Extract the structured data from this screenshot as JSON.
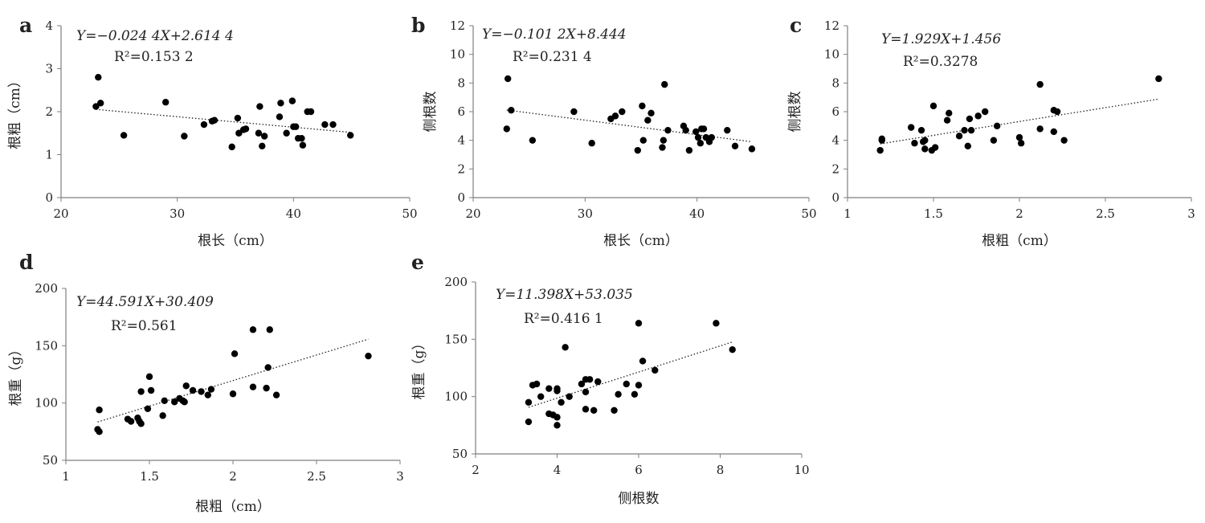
{
  "chart_data": [
    {
      "panel": "a",
      "type": "scatter",
      "equation": "Y=−0.024 4X+2.614 4",
      "r2": "R²=0.153 2",
      "xlabel": "根长（cm）",
      "ylabel": "根粗（cm）",
      "xlim": [
        20,
        50
      ],
      "ylim": [
        0,
        4
      ],
      "xticks": [
        20,
        30,
        40,
        50
      ],
      "yticks": [
        0,
        1,
        2,
        3,
        4
      ],
      "trendline": {
        "slope": -0.0244,
        "intercept": 2.6144
      },
      "points": [
        [
          23.0,
          2.12
        ],
        [
          23.2,
          2.8
        ],
        [
          23.4,
          2.2
        ],
        [
          25.4,
          1.45
        ],
        [
          29.0,
          2.22
        ],
        [
          30.6,
          1.43
        ],
        [
          32.3,
          1.7
        ],
        [
          33.0,
          1.78
        ],
        [
          33.2,
          1.8
        ],
        [
          34.7,
          1.18
        ],
        [
          35.2,
          1.85
        ],
        [
          35.3,
          1.5
        ],
        [
          35.7,
          1.58
        ],
        [
          35.9,
          1.6
        ],
        [
          37.0,
          1.5
        ],
        [
          37.1,
          2.12
        ],
        [
          37.3,
          1.2
        ],
        [
          37.5,
          1.43
        ],
        [
          38.8,
          1.88
        ],
        [
          38.9,
          2.2
        ],
        [
          39.4,
          1.5
        ],
        [
          39.9,
          2.25
        ],
        [
          40.0,
          1.65
        ],
        [
          40.2,
          1.65
        ],
        [
          40.4,
          1.38
        ],
        [
          40.7,
          1.38
        ],
        [
          40.8,
          1.22
        ],
        [
          41.2,
          2.0
        ],
        [
          41.5,
          2.0
        ],
        [
          42.7,
          1.7
        ],
        [
          43.4,
          1.7
        ],
        [
          44.9,
          1.45
        ]
      ]
    },
    {
      "panel": "b",
      "type": "scatter",
      "equation": "Y=−0.101 2X+8.444",
      "r2": "R²=0.231 4",
      "xlabel": "根长（cm）",
      "ylabel": "侧根数",
      "xlim": [
        20,
        50
      ],
      "ylim": [
        0,
        12
      ],
      "xticks": [
        20,
        30,
        40,
        50
      ],
      "yticks": [
        0,
        2,
        4,
        6,
        8,
        10,
        12
      ],
      "trendline": {
        "slope": -0.1012,
        "intercept": 8.444
      },
      "points": [
        [
          23.0,
          4.8
        ],
        [
          23.1,
          8.3
        ],
        [
          23.4,
          6.1
        ],
        [
          25.3,
          4.0
        ],
        [
          29.0,
          6.0
        ],
        [
          30.6,
          3.8
        ],
        [
          32.3,
          5.5
        ],
        [
          32.7,
          5.7
        ],
        [
          33.3,
          6.0
        ],
        [
          34.7,
          3.3
        ],
        [
          35.1,
          6.4
        ],
        [
          35.2,
          4.0
        ],
        [
          35.6,
          5.4
        ],
        [
          35.9,
          5.9
        ],
        [
          36.9,
          3.5
        ],
        [
          37.0,
          4.0
        ],
        [
          37.1,
          7.9
        ],
        [
          37.4,
          4.7
        ],
        [
          38.8,
          5.0
        ],
        [
          39.0,
          4.7
        ],
        [
          39.3,
          3.3
        ],
        [
          39.9,
          4.6
        ],
        [
          40.1,
          4.2
        ],
        [
          40.3,
          3.8
        ],
        [
          40.4,
          4.8
        ],
        [
          40.6,
          4.8
        ],
        [
          40.8,
          4.2
        ],
        [
          41.1,
          3.9
        ],
        [
          41.3,
          4.2
        ],
        [
          42.7,
          4.7
        ],
        [
          43.4,
          3.6
        ],
        [
          44.9,
          3.4
        ]
      ]
    },
    {
      "panel": "c",
      "type": "scatter",
      "equation": "Y=1.929X+1.456",
      "r2": "R²=0.3278",
      "xlabel": "根粗（cm）",
      "ylabel": "侧根数",
      "xlim": [
        1,
        3
      ],
      "ylim": [
        0,
        12
      ],
      "xticks": [
        1,
        1.5,
        2,
        2.5,
        3
      ],
      "ytick_labels": [
        "0",
        "2",
        "4",
        "6",
        "8",
        "10",
        "12"
      ],
      "xtick_labels": [
        "1",
        "1.5",
        "2",
        "2.5",
        "3"
      ],
      "yticks": [
        0,
        2,
        4,
        6,
        8,
        10,
        12
      ],
      "trendline": {
        "slope": 1.929,
        "intercept": 1.456
      },
      "points": [
        [
          1.19,
          3.3
        ],
        [
          1.2,
          4.1
        ],
        [
          1.2,
          4.0
        ],
        [
          1.37,
          4.9
        ],
        [
          1.39,
          3.8
        ],
        [
          1.43,
          4.7
        ],
        [
          1.44,
          3.9
        ],
        [
          1.45,
          4.0
        ],
        [
          1.45,
          3.4
        ],
        [
          1.49,
          3.3
        ],
        [
          1.5,
          6.4
        ],
        [
          1.51,
          3.5
        ],
        [
          1.58,
          5.4
        ],
        [
          1.59,
          5.9
        ],
        [
          1.65,
          4.3
        ],
        [
          1.68,
          4.7
        ],
        [
          1.7,
          3.6
        ],
        [
          1.71,
          5.5
        ],
        [
          1.72,
          4.7
        ],
        [
          1.76,
          5.7
        ],
        [
          1.8,
          6.0
        ],
        [
          1.85,
          4.0
        ],
        [
          1.87,
          5.0
        ],
        [
          2.0,
          4.2
        ],
        [
          2.01,
          3.8
        ],
        [
          2.12,
          4.8
        ],
        [
          2.12,
          7.9
        ],
        [
          2.2,
          4.6
        ],
        [
          2.2,
          6.1
        ],
        [
          2.22,
          6.0
        ],
        [
          2.26,
          4.0
        ],
        [
          2.81,
          8.3
        ]
      ]
    },
    {
      "panel": "d",
      "type": "scatter",
      "equation": "Y=44.591X+30.409",
      "r2": "R²=0.561",
      "xlabel": "根粗（cm）",
      "ylabel": "根重（g）",
      "xlim": [
        1,
        3
      ],
      "ylim": [
        50,
        200
      ],
      "xticks": [
        1,
        1.5,
        2,
        2.5,
        3
      ],
      "xtick_labels": [
        "1",
        "1.5",
        "2",
        "2.5",
        "3"
      ],
      "yticks": [
        50,
        100,
        150,
        200
      ],
      "trendline": {
        "slope": 44.591,
        "intercept": 30.409
      },
      "points": [
        [
          1.19,
          77
        ],
        [
          1.2,
          75
        ],
        [
          1.2,
          94
        ],
        [
          1.37,
          86
        ],
        [
          1.39,
          84
        ],
        [
          1.43,
          87
        ],
        [
          1.44,
          84
        ],
        [
          1.45,
          82
        ],
        [
          1.45,
          110
        ],
        [
          1.49,
          95
        ],
        [
          1.5,
          123
        ],
        [
          1.51,
          111
        ],
        [
          1.58,
          89
        ],
        [
          1.59,
          102
        ],
        [
          1.65,
          101
        ],
        [
          1.68,
          104
        ],
        [
          1.7,
          102
        ],
        [
          1.71,
          101
        ],
        [
          1.72,
          115
        ],
        [
          1.76,
          111
        ],
        [
          1.81,
          110
        ],
        [
          1.85,
          107
        ],
        [
          1.87,
          112
        ],
        [
          2.0,
          108
        ],
        [
          2.01,
          143
        ],
        [
          2.12,
          114
        ],
        [
          2.12,
          164
        ],
        [
          2.2,
          113
        ],
        [
          2.21,
          131
        ],
        [
          2.22,
          164
        ],
        [
          2.26,
          107
        ],
        [
          2.81,
          141
        ]
      ]
    },
    {
      "panel": "e",
      "type": "scatter",
      "equation": "Y=11.398X+53.035",
      "r2": "R²=0.416 1",
      "xlabel": "侧根数",
      "ylabel": "根重（g）",
      "xlim": [
        2,
        10
      ],
      "ylim": [
        50,
        200
      ],
      "xticks": [
        2,
        4,
        6,
        8,
        10
      ],
      "yticks": [
        50,
        100,
        150,
        200
      ],
      "trendline": {
        "slope": 11.398,
        "intercept": 53.035
      },
      "points": [
        [
          3.3,
          78
        ],
        [
          3.3,
          95
        ],
        [
          3.4,
          110
        ],
        [
          3.5,
          111
        ],
        [
          3.6,
          100
        ],
        [
          3.8,
          85
        ],
        [
          3.8,
          107
        ],
        [
          3.9,
          84
        ],
        [
          4.0,
          107
        ],
        [
          4.0,
          105
        ],
        [
          4.0,
          82
        ],
        [
          4.0,
          75
        ],
        [
          4.1,
          95
        ],
        [
          4.2,
          143
        ],
        [
          4.3,
          100
        ],
        [
          4.6,
          111
        ],
        [
          4.7,
          115
        ],
        [
          4.7,
          104
        ],
        [
          4.7,
          89
        ],
        [
          4.8,
          115
        ],
        [
          4.9,
          88
        ],
        [
          5.0,
          113
        ],
        [
          5.4,
          88
        ],
        [
          5.5,
          102
        ],
        [
          5.7,
          111
        ],
        [
          5.9,
          102
        ],
        [
          6.0,
          110
        ],
        [
          6.0,
          164
        ],
        [
          6.1,
          131
        ],
        [
          6.4,
          123
        ],
        [
          7.9,
          164
        ],
        [
          8.3,
          141
        ]
      ]
    }
  ]
}
